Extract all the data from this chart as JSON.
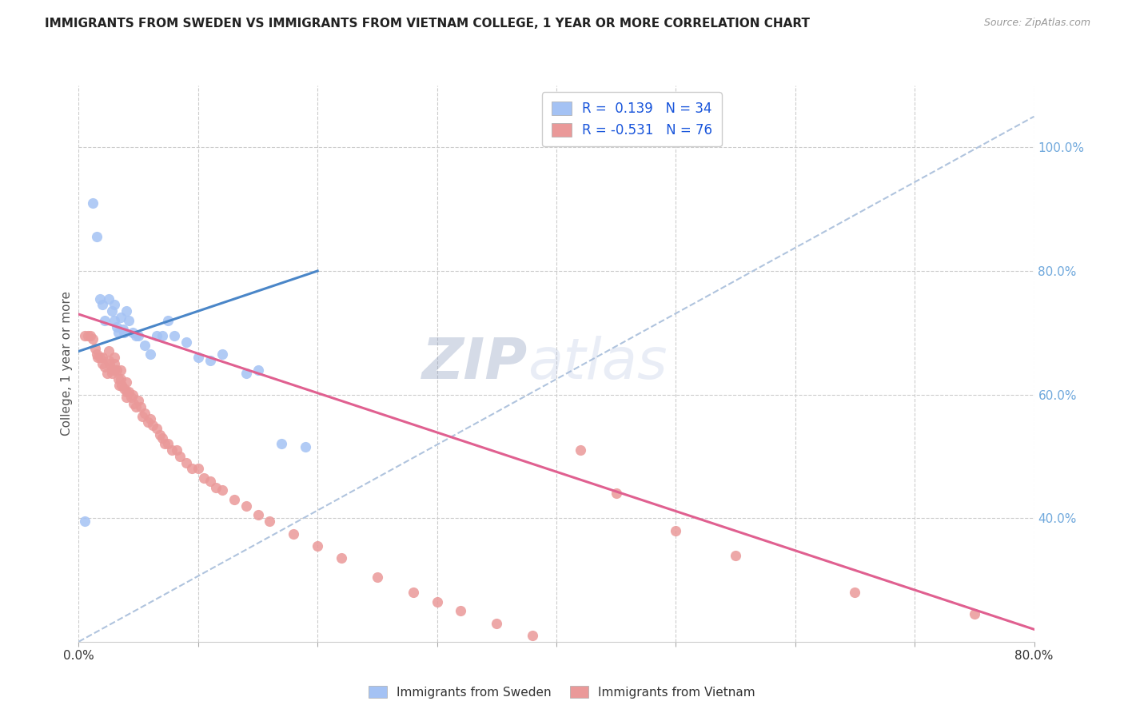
{
  "title": "IMMIGRANTS FROM SWEDEN VS IMMIGRANTS FROM VIETNAM COLLEGE, 1 YEAR OR MORE CORRELATION CHART",
  "source": "Source: ZipAtlas.com",
  "ylabel": "College, 1 year or more",
  "xlim": [
    0.0,
    0.8
  ],
  "ylim": [
    0.2,
    1.1
  ],
  "x_tick_labels": [
    "0.0%",
    "",
    "",
    "",
    "",
    "",
    "",
    "",
    "80.0%"
  ],
  "x_tick_vals": [
    0.0,
    0.1,
    0.2,
    0.3,
    0.4,
    0.5,
    0.6,
    0.7,
    0.8
  ],
  "y_tick_labels": [
    "40.0%",
    "60.0%",
    "80.0%",
    "100.0%"
  ],
  "y_tick_vals": [
    0.4,
    0.6,
    0.8,
    1.0
  ],
  "sweden_color": "#a4c2f4",
  "vietnam_color": "#ea9999",
  "sweden_line_color": "#4a86c8",
  "vietnam_line_color": "#e06090",
  "dashed_line_color": "#b0c4de",
  "right_axis_color": "#6fa8dc",
  "legend_sweden_label": "Immigrants from Sweden",
  "legend_vietnam_label": "Immigrants from Vietnam",
  "R_sweden": 0.139,
  "N_sweden": 34,
  "R_vietnam": -0.531,
  "N_vietnam": 76,
  "watermark_zip": "ZIP",
  "watermark_atlas": "atlas",
  "sweden_line_x0": 0.0,
  "sweden_line_y0": 0.67,
  "sweden_line_x1": 0.2,
  "sweden_line_y1": 0.8,
  "vietnam_line_x0": 0.0,
  "vietnam_line_y0": 0.73,
  "vietnam_line_x1": 0.8,
  "vietnam_line_y1": 0.22,
  "dash_line_x0": 0.0,
  "dash_line_y0": 0.2,
  "dash_line_x1": 0.8,
  "dash_line_y1": 1.05,
  "sweden_x": [
    0.005,
    0.012,
    0.015,
    0.018,
    0.02,
    0.022,
    0.025,
    0.028,
    0.03,
    0.03,
    0.032,
    0.033,
    0.035,
    0.037,
    0.038,
    0.04,
    0.042,
    0.045,
    0.048,
    0.05,
    0.055,
    0.06,
    0.065,
    0.07,
    0.075,
    0.08,
    0.09,
    0.1,
    0.11,
    0.12,
    0.14,
    0.15,
    0.17,
    0.19
  ],
  "sweden_y": [
    0.395,
    0.91,
    0.855,
    0.755,
    0.745,
    0.72,
    0.755,
    0.735,
    0.745,
    0.72,
    0.71,
    0.7,
    0.725,
    0.705,
    0.7,
    0.735,
    0.72,
    0.7,
    0.695,
    0.695,
    0.68,
    0.665,
    0.695,
    0.695,
    0.72,
    0.695,
    0.685,
    0.66,
    0.655,
    0.665,
    0.635,
    0.64,
    0.52,
    0.515
  ],
  "vietnam_x": [
    0.005,
    0.008,
    0.01,
    0.012,
    0.014,
    0.015,
    0.016,
    0.018,
    0.02,
    0.02,
    0.022,
    0.024,
    0.025,
    0.025,
    0.026,
    0.028,
    0.028,
    0.03,
    0.03,
    0.03,
    0.032,
    0.033,
    0.034,
    0.035,
    0.035,
    0.036,
    0.038,
    0.04,
    0.04,
    0.04,
    0.042,
    0.044,
    0.045,
    0.046,
    0.048,
    0.05,
    0.052,
    0.053,
    0.055,
    0.058,
    0.06,
    0.062,
    0.065,
    0.068,
    0.07,
    0.072,
    0.075,
    0.078,
    0.082,
    0.085,
    0.09,
    0.095,
    0.1,
    0.105,
    0.11,
    0.115,
    0.12,
    0.13,
    0.14,
    0.15,
    0.16,
    0.18,
    0.2,
    0.22,
    0.25,
    0.28,
    0.3,
    0.32,
    0.35,
    0.38,
    0.42,
    0.45,
    0.5,
    0.55,
    0.65,
    0.75
  ],
  "vietnam_y": [
    0.695,
    0.695,
    0.695,
    0.69,
    0.675,
    0.665,
    0.66,
    0.66,
    0.66,
    0.65,
    0.645,
    0.635,
    0.67,
    0.655,
    0.65,
    0.64,
    0.635,
    0.66,
    0.65,
    0.64,
    0.64,
    0.625,
    0.615,
    0.64,
    0.625,
    0.615,
    0.61,
    0.62,
    0.605,
    0.595,
    0.605,
    0.595,
    0.6,
    0.585,
    0.58,
    0.59,
    0.58,
    0.565,
    0.57,
    0.555,
    0.56,
    0.55,
    0.545,
    0.535,
    0.53,
    0.52,
    0.52,
    0.51,
    0.51,
    0.5,
    0.49,
    0.48,
    0.48,
    0.465,
    0.46,
    0.45,
    0.445,
    0.43,
    0.42,
    0.405,
    0.395,
    0.375,
    0.355,
    0.335,
    0.305,
    0.28,
    0.265,
    0.25,
    0.23,
    0.21,
    0.51,
    0.44,
    0.38,
    0.34,
    0.28,
    0.245
  ]
}
